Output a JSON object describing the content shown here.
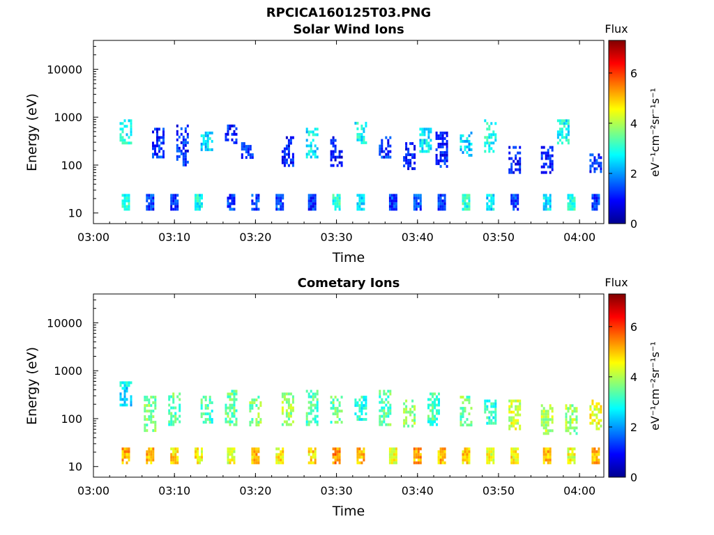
{
  "figure_title": "RPCICA160125T03.PNG",
  "colormap": [
    "#00008f",
    "#0000ff",
    "#0080ff",
    "#00ffff",
    "#80ff80",
    "#ffff00",
    "#ff8000",
    "#ff0000",
    "#800000"
  ],
  "chart_data": [
    {
      "type": "heatmap",
      "title": "Solar Wind Ions",
      "xlabel": "Time",
      "ylabel": "Energy (eV)",
      "yscale": "log",
      "xlim": [
        "03:00",
        "04:03"
      ],
      "ylim": [
        6,
        40000
      ],
      "x_ticks": [
        "03:00",
        "03:10",
        "03:20",
        "03:30",
        "03:40",
        "03:50",
        "04:00"
      ],
      "y_ticks": [
        "10",
        "100",
        "1000",
        "10000"
      ],
      "colorbar": {
        "title": "Flux",
        "label": "eV⁻¹cm⁻²sr⁻¹s⁻¹",
        "range": [
          0,
          7.3
        ],
        "ticks": [
          "0",
          "2",
          "4",
          "6"
        ]
      },
      "bands": [
        {
          "time": "03:04",
          "e_min": 300,
          "e_max": 900,
          "level": 2.8
        },
        {
          "time": "03:08",
          "e_min": 150,
          "e_max": 600,
          "level": 1.2
        },
        {
          "time": "03:11",
          "e_min": 100,
          "e_max": 700,
          "level": 1.1
        },
        {
          "time": "03:14",
          "e_min": 200,
          "e_max": 500,
          "level": 2.5
        },
        {
          "time": "03:17",
          "e_min": 300,
          "e_max": 700,
          "level": 1.0
        },
        {
          "time": "03:19",
          "e_min": 150,
          "e_max": 300,
          "level": 1.2
        },
        {
          "time": "03:24",
          "e_min": 100,
          "e_max": 400,
          "level": 1.0
        },
        {
          "time": "03:27",
          "e_min": 150,
          "e_max": 600,
          "level": 2.6
        },
        {
          "time": "03:30",
          "e_min": 100,
          "e_max": 400,
          "level": 0.9
        },
        {
          "time": "03:33",
          "e_min": 300,
          "e_max": 800,
          "level": 2.8
        },
        {
          "time": "03:36",
          "e_min": 150,
          "e_max": 400,
          "level": 1.2
        },
        {
          "time": "03:39",
          "e_min": 80,
          "e_max": 300,
          "level": 1.0
        },
        {
          "time": "03:41",
          "e_min": 200,
          "e_max": 600,
          "level": 2.6
        },
        {
          "time": "03:43",
          "e_min": 100,
          "e_max": 500,
          "level": 1.1
        },
        {
          "time": "03:46",
          "e_min": 150,
          "e_max": 500,
          "level": 2.4
        },
        {
          "time": "03:49",
          "e_min": 200,
          "e_max": 900,
          "level": 2.8
        },
        {
          "time": "03:52",
          "e_min": 70,
          "e_max": 250,
          "level": 1.0
        },
        {
          "time": "03:56",
          "e_min": 70,
          "e_max": 250,
          "level": 1.0
        },
        {
          "time": "03:58",
          "e_min": 300,
          "e_max": 900,
          "level": 2.8
        },
        {
          "time": "04:02",
          "e_min": 70,
          "e_max": 200,
          "level": 1.2
        },
        {
          "time": "03:04",
          "e_min": 12,
          "e_max": 25,
          "level": 3.0
        },
        {
          "time": "03:07",
          "e_min": 12,
          "e_max": 25,
          "level": 1.3
        },
        {
          "time": "03:10",
          "e_min": 12,
          "e_max": 25,
          "level": 1.2
        },
        {
          "time": "03:13",
          "e_min": 12,
          "e_max": 25,
          "level": 2.8
        },
        {
          "time": "03:17",
          "e_min": 12,
          "e_max": 25,
          "level": 1.3
        },
        {
          "time": "03:20",
          "e_min": 12,
          "e_max": 25,
          "level": 1.3
        },
        {
          "time": "03:23",
          "e_min": 12,
          "e_max": 25,
          "level": 1.4
        },
        {
          "time": "03:27",
          "e_min": 12,
          "e_max": 25,
          "level": 1.2
        },
        {
          "time": "03:30",
          "e_min": 12,
          "e_max": 25,
          "level": 3.0
        },
        {
          "time": "03:33",
          "e_min": 12,
          "e_max": 25,
          "level": 2.6
        },
        {
          "time": "03:37",
          "e_min": 12,
          "e_max": 25,
          "level": 1.3
        },
        {
          "time": "03:40",
          "e_min": 12,
          "e_max": 25,
          "level": 1.4
        },
        {
          "time": "03:43",
          "e_min": 12,
          "e_max": 25,
          "level": 1.3
        },
        {
          "time": "03:46",
          "e_min": 12,
          "e_max": 25,
          "level": 3.0
        },
        {
          "time": "03:49",
          "e_min": 12,
          "e_max": 25,
          "level": 2.6
        },
        {
          "time": "03:52",
          "e_min": 12,
          "e_max": 25,
          "level": 1.3
        },
        {
          "time": "03:56",
          "e_min": 12,
          "e_max": 25,
          "level": 2.6
        },
        {
          "time": "03:59",
          "e_min": 12,
          "e_max": 25,
          "level": 3.0
        },
        {
          "time": "04:02",
          "e_min": 12,
          "e_max": 25,
          "level": 1.3
        }
      ]
    },
    {
      "type": "heatmap",
      "title": "Cometary Ions",
      "xlabel": "Time",
      "ylabel": "Energy (eV)",
      "yscale": "log",
      "xlim": [
        "03:00",
        "04:03"
      ],
      "ylim": [
        6,
        40000
      ],
      "x_ticks": [
        "03:00",
        "03:10",
        "03:20",
        "03:30",
        "03:40",
        "03:50",
        "04:00"
      ],
      "y_ticks": [
        "10",
        "100",
        "1000",
        "10000"
      ],
      "colorbar": {
        "title": "Flux",
        "label": "eV⁻¹cm⁻²sr⁻¹s⁻¹",
        "range": [
          0,
          7.3
        ],
        "ticks": [
          "0",
          "2",
          "4",
          "6"
        ]
      },
      "bands": [
        {
          "time": "03:04",
          "e_min": 200,
          "e_max": 600,
          "level": 2.6
        },
        {
          "time": "03:07",
          "e_min": 60,
          "e_max": 300,
          "level": 3.6
        },
        {
          "time": "03:10",
          "e_min": 80,
          "e_max": 350,
          "level": 3.4
        },
        {
          "time": "03:14",
          "e_min": 80,
          "e_max": 300,
          "level": 3.2
        },
        {
          "time": "03:17",
          "e_min": 80,
          "e_max": 400,
          "level": 3.5
        },
        {
          "time": "03:20",
          "e_min": 70,
          "e_max": 300,
          "level": 3.6
        },
        {
          "time": "03:24",
          "e_min": 80,
          "e_max": 350,
          "level": 3.8
        },
        {
          "time": "03:27",
          "e_min": 80,
          "e_max": 400,
          "level": 3.2
        },
        {
          "time": "03:30",
          "e_min": 80,
          "e_max": 300,
          "level": 3.4
        },
        {
          "time": "03:33",
          "e_min": 90,
          "e_max": 300,
          "level": 3.0
        },
        {
          "time": "03:36",
          "e_min": 80,
          "e_max": 400,
          "level": 3.4
        },
        {
          "time": "03:39",
          "e_min": 70,
          "e_max": 250,
          "level": 3.8
        },
        {
          "time": "03:42",
          "e_min": 80,
          "e_max": 350,
          "level": 3.2
        },
        {
          "time": "03:46",
          "e_min": 70,
          "e_max": 300,
          "level": 3.6
        },
        {
          "time": "03:49",
          "e_min": 80,
          "e_max": 250,
          "level": 3.0
        },
        {
          "time": "03:52",
          "e_min": 60,
          "e_max": 250,
          "level": 4.2
        },
        {
          "time": "03:56",
          "e_min": 50,
          "e_max": 200,
          "level": 4.0
        },
        {
          "time": "03:59",
          "e_min": 50,
          "e_max": 200,
          "level": 3.8
        },
        {
          "time": "04:02",
          "e_min": 60,
          "e_max": 250,
          "level": 4.4
        },
        {
          "time": "03:04",
          "e_min": 12,
          "e_max": 25,
          "level": 5.2
        },
        {
          "time": "03:07",
          "e_min": 12,
          "e_max": 25,
          "level": 5.0
        },
        {
          "time": "03:10",
          "e_min": 12,
          "e_max": 25,
          "level": 4.8
        },
        {
          "time": "03:13",
          "e_min": 12,
          "e_max": 25,
          "level": 4.6
        },
        {
          "time": "03:17",
          "e_min": 12,
          "e_max": 25,
          "level": 4.4
        },
        {
          "time": "03:20",
          "e_min": 12,
          "e_max": 25,
          "level": 5.0
        },
        {
          "time": "03:23",
          "e_min": 12,
          "e_max": 25,
          "level": 4.6
        },
        {
          "time": "03:27",
          "e_min": 12,
          "e_max": 25,
          "level": 4.8
        },
        {
          "time": "03:30",
          "e_min": 12,
          "e_max": 25,
          "level": 5.4
        },
        {
          "time": "03:33",
          "e_min": 12,
          "e_max": 25,
          "level": 5.0
        },
        {
          "time": "03:37",
          "e_min": 12,
          "e_max": 25,
          "level": 4.4
        },
        {
          "time": "03:40",
          "e_min": 12,
          "e_max": 25,
          "level": 5.2
        },
        {
          "time": "03:43",
          "e_min": 12,
          "e_max": 25,
          "level": 5.0
        },
        {
          "time": "03:46",
          "e_min": 12,
          "e_max": 25,
          "level": 4.8
        },
        {
          "time": "03:49",
          "e_min": 12,
          "e_max": 25,
          "level": 4.4
        },
        {
          "time": "03:52",
          "e_min": 12,
          "e_max": 25,
          "level": 4.6
        },
        {
          "time": "03:56",
          "e_min": 12,
          "e_max": 25,
          "level": 5.0
        },
        {
          "time": "03:59",
          "e_min": 12,
          "e_max": 25,
          "level": 4.4
        },
        {
          "time": "04:02",
          "e_min": 12,
          "e_max": 25,
          "level": 5.2
        }
      ]
    }
  ]
}
